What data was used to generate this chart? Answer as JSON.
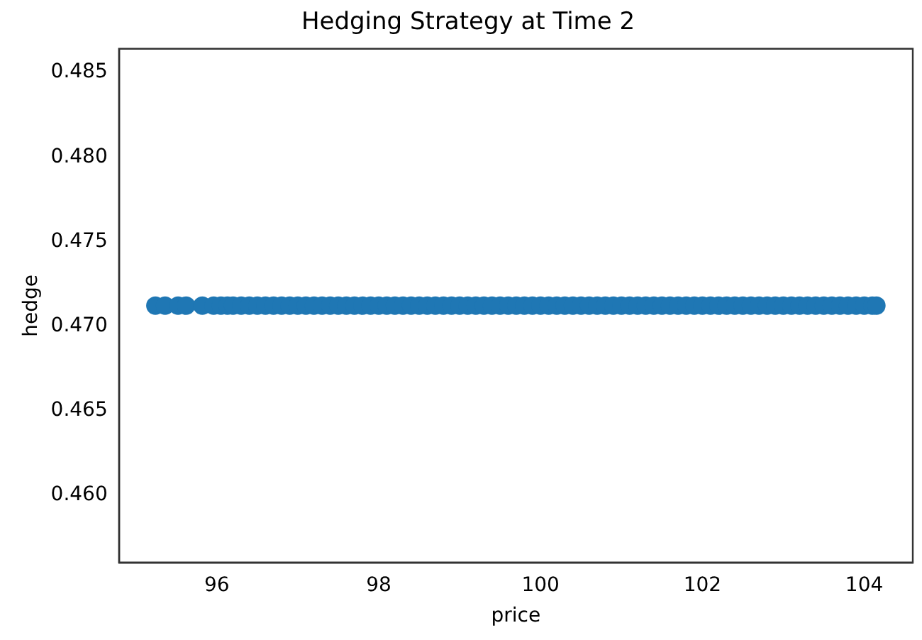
{
  "chart_data": {
    "type": "scatter",
    "title": "Hedging Strategy at Time 2",
    "xlabel": "price",
    "ylabel": "hedge",
    "xlim": [
      94.79,
      104.6
    ],
    "xticks": [
      96,
      98,
      100,
      102,
      104
    ],
    "ylim": [
      0.456,
      0.4864
    ],
    "yticks": [
      {
        "value": 0.46,
        "label": "0.460"
      },
      0.465,
      {
        "value": 0.47,
        "label": "0.470"
      },
      0.475,
      {
        "value": 0.48,
        "label": "0.480"
      },
      0.485
    ],
    "grid": false,
    "legend": false,
    "marker": "circle",
    "series": [
      {
        "color": "#1f77b4",
        "x": [
          95.24,
          95.36,
          95.52,
          95.62,
          95.82,
          95.96,
          96.05,
          96.13,
          96.2,
          96.3,
          96.4,
          96.5,
          96.6,
          96.7,
          96.8,
          96.9,
          97.0,
          97.1,
          97.2,
          97.3,
          97.4,
          97.5,
          97.6,
          97.7,
          97.8,
          97.9,
          98.0,
          98.1,
          98.2,
          98.3,
          98.4,
          98.5,
          98.6,
          98.7,
          98.8,
          98.9,
          99.0,
          99.1,
          99.2,
          99.3,
          99.4,
          99.5,
          99.6,
          99.7,
          99.8,
          99.9,
          100.0,
          100.1,
          100.2,
          100.3,
          100.4,
          100.5,
          100.6,
          100.7,
          100.8,
          100.9,
          101.0,
          101.1,
          101.2,
          101.3,
          101.4,
          101.5,
          101.6,
          101.7,
          101.8,
          101.9,
          102.0,
          102.1,
          102.2,
          102.3,
          102.4,
          102.5,
          102.6,
          102.7,
          102.8,
          102.9,
          103.0,
          103.1,
          103.2,
          103.3,
          103.4,
          103.5,
          103.6,
          103.7,
          103.8,
          103.9,
          104.0,
          104.1,
          104.15
        ],
        "values": [
          0.4712,
          0.4712,
          0.4712,
          0.4712,
          0.4712,
          0.4712,
          0.4712,
          0.4712,
          0.4712,
          0.4712,
          0.4712,
          0.4712,
          0.4712,
          0.4712,
          0.4712,
          0.4712,
          0.4712,
          0.4712,
          0.4712,
          0.4712,
          0.4712,
          0.4712,
          0.4712,
          0.4712,
          0.4712,
          0.4712,
          0.4712,
          0.4712,
          0.4712,
          0.4712,
          0.4712,
          0.4712,
          0.4712,
          0.4712,
          0.4712,
          0.4712,
          0.4712,
          0.4712,
          0.4712,
          0.4712,
          0.4712,
          0.4712,
          0.4712,
          0.4712,
          0.4712,
          0.4712,
          0.4712,
          0.4712,
          0.4712,
          0.4712,
          0.4712,
          0.4712,
          0.4712,
          0.4712,
          0.4712,
          0.4712,
          0.4712,
          0.4712,
          0.4712,
          0.4712,
          0.4712,
          0.4712,
          0.4712,
          0.4712,
          0.4712,
          0.4712,
          0.4712,
          0.4712,
          0.4712,
          0.4712,
          0.4712,
          0.4712,
          0.4712,
          0.4712,
          0.4712,
          0.4712,
          0.4712,
          0.4712,
          0.4712,
          0.4712,
          0.4712,
          0.4712,
          0.4712,
          0.4712,
          0.4712,
          0.4712,
          0.4712,
          0.4712,
          0.4712
        ]
      }
    ]
  }
}
